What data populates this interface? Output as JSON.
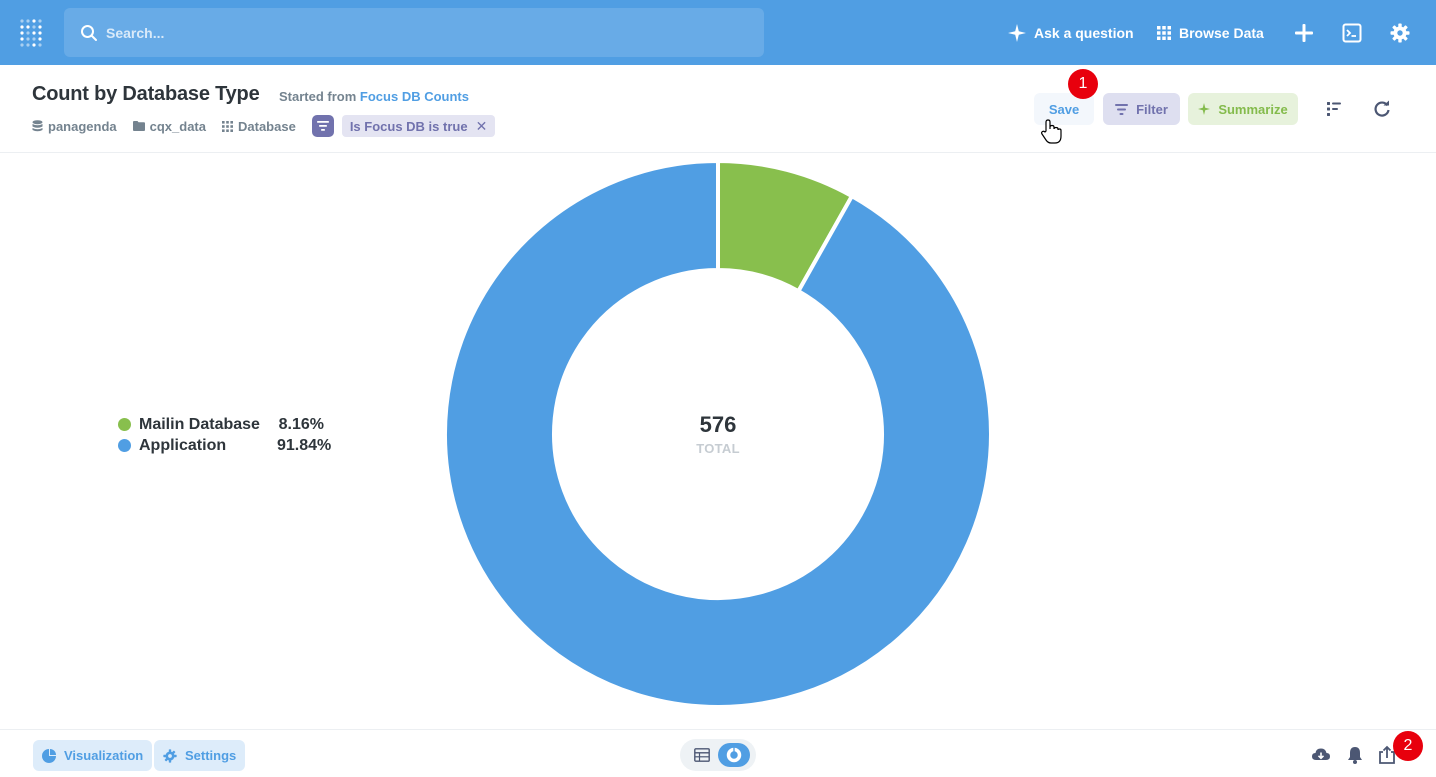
{
  "nav": {
    "search_placeholder": "Search...",
    "ask_label": "Ask a question",
    "browse_label": "Browse Data",
    "accent": "#509ee3"
  },
  "header": {
    "title": "Count by Database Type",
    "started_from_prefix": "Started from",
    "started_from_link": "Focus DB Counts",
    "breadcrumbs": [
      "panagenda",
      "cqx_data",
      "Database"
    ],
    "filter_pill": "Is Focus DB is true",
    "filter_remove": "✕",
    "save_label": "Save",
    "filter_label": "Filter",
    "summarize_label": "Summarize"
  },
  "badges": [
    "1",
    "2"
  ],
  "chart_data": {
    "type": "pie",
    "total": "576",
    "total_label": "TOTAL",
    "slices": [
      {
        "name": "Mailin Database",
        "percent": 8.16,
        "percent_label": "8.16%",
        "color": "#88bf4d"
      },
      {
        "name": "Application",
        "percent": 91.84,
        "percent_label": "91.84%",
        "color": "#509ee3"
      }
    ]
  },
  "footer": {
    "visualization_label": "Visualization",
    "settings_label": "Settings"
  }
}
